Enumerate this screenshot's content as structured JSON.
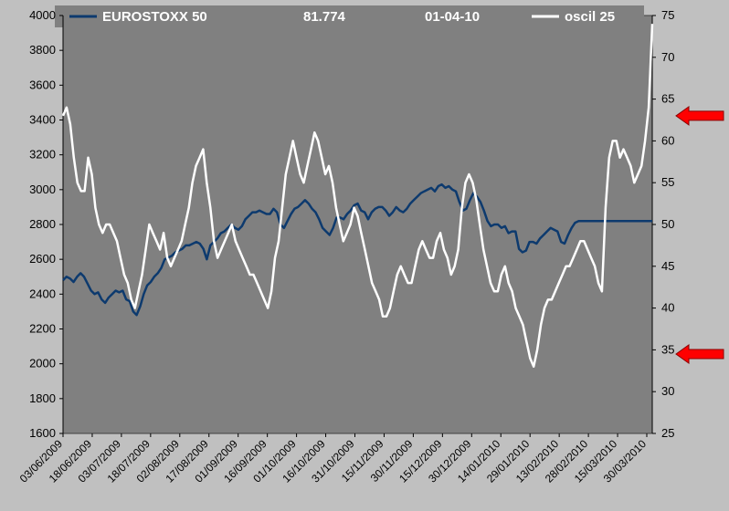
{
  "chart_data": {
    "type": "line",
    "header": {
      "series1_label": "EUROSTOXX 50",
      "value": "81.774",
      "date": "01-04-10",
      "series2_label": "oscil 25"
    },
    "y_left": {
      "min": 1600,
      "max": 4000,
      "ticks": [
        "1600",
        "1800",
        "2000",
        "2200",
        "2400",
        "2600",
        "2800",
        "3000",
        "3200",
        "3400",
        "3600",
        "3800",
        "4000"
      ]
    },
    "y_right": {
      "min": 25,
      "max": 75,
      "ticks": [
        "25",
        "30",
        "35",
        "40",
        "45",
        "50",
        "55",
        "60",
        "65",
        "70",
        "75"
      ]
    },
    "x_ticks": [
      "03/06/2009",
      "18/06/2009",
      "03/07/2009",
      "18/07/2009",
      "02/08/2009",
      "17/08/2009",
      "01/09/2009",
      "16/09/2009",
      "01/10/2009",
      "16/10/2009",
      "31/10/2009",
      "15/11/2009",
      "30/11/2009",
      "15/12/2009",
      "30/12/2009",
      "14/01/2010",
      "29/01/2010",
      "13/02/2010",
      "28/02/2010",
      "15/03/2010",
      "30/03/2010"
    ],
    "grid": false,
    "arrows_right_axis": [
      63,
      34.5
    ],
    "colors": {
      "plot_bg": "#808080",
      "frame_bg": "#c0c0c0",
      "series1": "#0d3a6e",
      "series2": "#ffffff",
      "arrow": "#ff0000"
    },
    "series": [
      {
        "name": "EUROSTOXX 50",
        "axis": "left",
        "values": [
          2480,
          2500,
          2490,
          2470,
          2500,
          2520,
          2500,
          2460,
          2420,
          2400,
          2410,
          2370,
          2350,
          2380,
          2400,
          2420,
          2410,
          2420,
          2370,
          2360,
          2300,
          2280,
          2330,
          2400,
          2450,
          2470,
          2500,
          2520,
          2550,
          2600,
          2610,
          2620,
          2640,
          2650,
          2660,
          2680,
          2680,
          2690,
          2700,
          2690,
          2660,
          2600,
          2680,
          2700,
          2720,
          2750,
          2760,
          2780,
          2800,
          2780,
          2770,
          2790,
          2830,
          2850,
          2870,
          2870,
          2880,
          2870,
          2860,
          2860,
          2890,
          2870,
          2800,
          2780,
          2820,
          2860,
          2890,
          2900,
          2920,
          2940,
          2920,
          2890,
          2870,
          2830,
          2780,
          2760,
          2740,
          2780,
          2840,
          2840,
          2830,
          2860,
          2880,
          2910,
          2920,
          2880,
          2870,
          2830,
          2870,
          2890,
          2900,
          2900,
          2880,
          2850,
          2870,
          2900,
          2880,
          2870,
          2890,
          2920,
          2940,
          2960,
          2980,
          2990,
          3000,
          3010,
          2990,
          3020,
          3030,
          3010,
          3020,
          3000,
          2990,
          2930,
          2880,
          2890,
          2940,
          2980,
          2960,
          2930,
          2880,
          2820,
          2790,
          2800,
          2800,
          2780,
          2790,
          2750,
          2760,
          2760,
          2660,
          2640,
          2650,
          2700,
          2700,
          2690,
          2720,
          2740,
          2760,
          2780,
          2770,
          2760,
          2700,
          2690,
          2740,
          2780,
          2810,
          2820,
          2820,
          2820,
          2820,
          2820,
          2820,
          2820,
          2820,
          2820,
          2820,
          2820,
          2820,
          2820,
          2820,
          2820,
          2820,
          2820,
          2820,
          2820,
          2820,
          2820,
          2820
        ]
      },
      {
        "name": "oscil 25",
        "axis": "right",
        "values": [
          63,
          64,
          62,
          58,
          55,
          54,
          54,
          58,
          56,
          52,
          50,
          49,
          50,
          50,
          49,
          48,
          46,
          44,
          43,
          41,
          40,
          42,
          44,
          47,
          50,
          49,
          48,
          47,
          49,
          46,
          45,
          46,
          47,
          48,
          50,
          52,
          55,
          57,
          58,
          59,
          55,
          52,
          48,
          46,
          47,
          48,
          49,
          50,
          48,
          47,
          46,
          45,
          44,
          44,
          43,
          42,
          41,
          40,
          42,
          46,
          48,
          52,
          56,
          58,
          60,
          58,
          56,
          55,
          57,
          59,
          61,
          60,
          58,
          56,
          57,
          55,
          52,
          50,
          48,
          49,
          50,
          52,
          51,
          49,
          47,
          45,
          43,
          42,
          41,
          39,
          39,
          40,
          42,
          44,
          45,
          44,
          43,
          43,
          45,
          47,
          48,
          47,
          46,
          46,
          48,
          49,
          47,
          46,
          44,
          45,
          47,
          52,
          55,
          56,
          55,
          53,
          50,
          47,
          45,
          43,
          42,
          42,
          44,
          45,
          43,
          42,
          40,
          39,
          38,
          36,
          34,
          33,
          35,
          38,
          40,
          41,
          41,
          42,
          43,
          44,
          45,
          45,
          46,
          47,
          48,
          48,
          47,
          46,
          45,
          43,
          42,
          52,
          58,
          60,
          60,
          58,
          59,
          58,
          57,
          55,
          56,
          57,
          60,
          64,
          74
        ]
      }
    ]
  }
}
